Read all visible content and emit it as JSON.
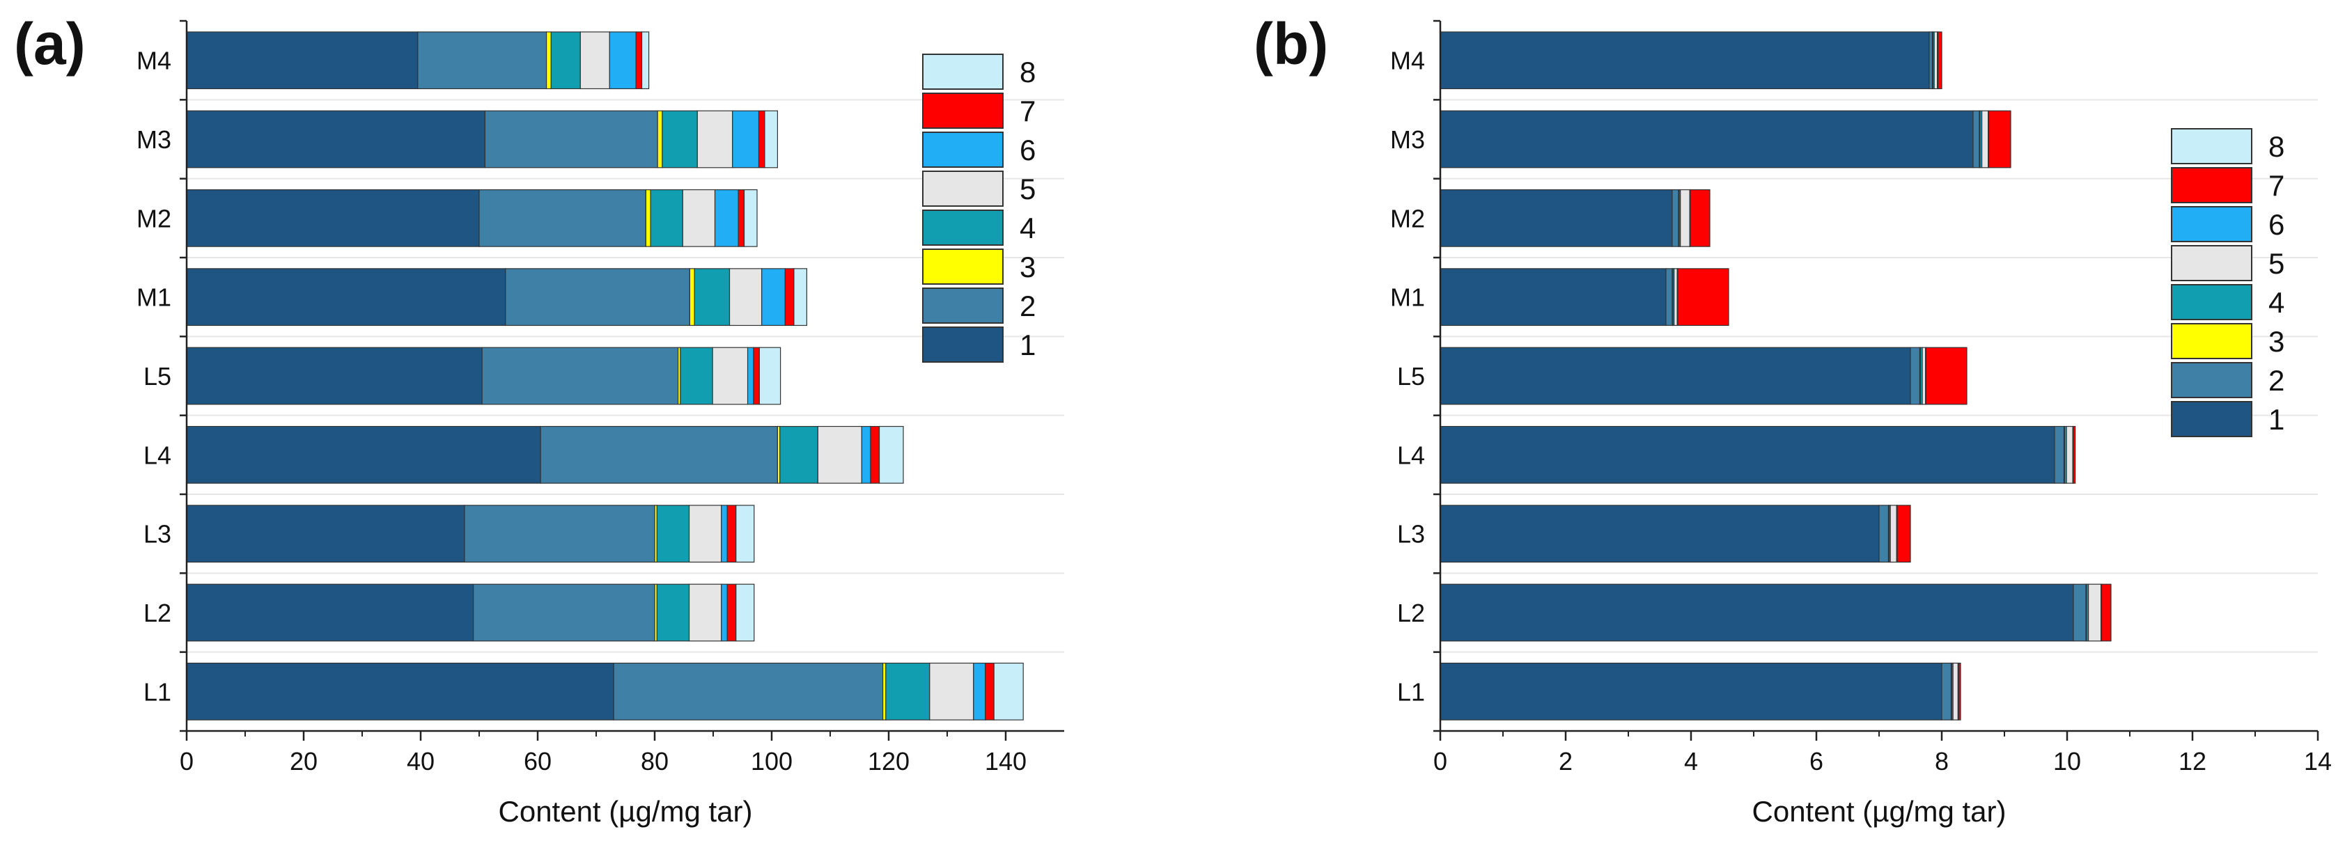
{
  "colors": {
    "1": "#1f5582",
    "2": "#3f81a6",
    "3": "#ffff00",
    "4": "#119eb0",
    "5": "#e6e6e6",
    "6": "#21aef5",
    "7": "#ff0000",
    "8": "#c8eefa",
    "edge": "#333333"
  },
  "chart_data": [
    {
      "panel_label": "(a)",
      "type": "bar",
      "orientation": "horizontal",
      "stacked": true,
      "xlabel": "Content (µg/mg tar)",
      "xlim": [
        0,
        150
      ],
      "xticks": [
        0,
        20,
        40,
        60,
        80,
        100,
        120,
        140
      ],
      "xtick_labels": [
        "0",
        "20",
        "40",
        "60",
        "80",
        "100",
        "120",
        "140"
      ],
      "categories": [
        "M4",
        "M3",
        "M2",
        "M1",
        "L5",
        "L4",
        "L3",
        "L2",
        "L1"
      ],
      "legend_title": "",
      "legend_order": [
        "8",
        "7",
        "6",
        "5",
        "4",
        "3",
        "2",
        "1"
      ],
      "legend_position": "right",
      "series": [
        {
          "name": "1",
          "values": [
            39.5,
            51,
            50,
            54.5,
            50.5,
            60.5,
            47.5,
            49,
            73
          ]
        },
        {
          "name": "2",
          "values": [
            22,
            29.5,
            28.5,
            31.5,
            33.5,
            40.5,
            32.5,
            31,
            46
          ]
        },
        {
          "name": "3",
          "values": [
            0.8,
            0.8,
            0.8,
            0.8,
            0.4,
            0.4,
            0.4,
            0.4,
            0.5
          ]
        },
        {
          "name": "4",
          "values": [
            5,
            6,
            5.5,
            6,
            5.5,
            6.5,
            5.5,
            5.5,
            7.5
          ]
        },
        {
          "name": "5",
          "values": [
            5,
            6,
            5.5,
            5.5,
            6,
            7.5,
            5.5,
            5.5,
            7.5
          ]
        },
        {
          "name": "6",
          "values": [
            4.5,
            4.5,
            4,
            4,
            1,
            1.5,
            1,
            1,
            2
          ]
        },
        {
          "name": "7",
          "values": [
            1,
            1,
            1,
            1.5,
            1,
            1.5,
            1.5,
            1.5,
            1.5
          ]
        },
        {
          "name": "8",
          "values": [
            1.2,
            2.2,
            2.2,
            2.2,
            3.6,
            4.1,
            3.1,
            3.1,
            5
          ]
        }
      ]
    },
    {
      "panel_label": "(b)",
      "type": "bar",
      "orientation": "horizontal",
      "stacked": true,
      "xlabel": "Content (µg/mg tar)",
      "xlim": [
        0,
        14
      ],
      "xticks": [
        0,
        2,
        4,
        6,
        8,
        10,
        12,
        14
      ],
      "xtick_labels": [
        "0",
        "2",
        "4",
        "6",
        "8",
        "10",
        "12",
        "14"
      ],
      "categories": [
        "M4",
        "M3",
        "M2",
        "M1",
        "L5",
        "L4",
        "L3",
        "L2",
        "L1"
      ],
      "legend_title": "",
      "legend_order": [
        "8",
        "7",
        "6",
        "5",
        "4",
        "3",
        "2",
        "1"
      ],
      "legend_position": "right",
      "series": [
        {
          "name": "1",
          "values": [
            7.8,
            8.5,
            3.7,
            3.6,
            7.5,
            9.8,
            7.0,
            10.1,
            8.0
          ]
        },
        {
          "name": "2",
          "values": [
            0.05,
            0.1,
            0.1,
            0.1,
            0.15,
            0.15,
            0.15,
            0.2,
            0.15
          ]
        },
        {
          "name": "3",
          "values": [
            0.01,
            0.01,
            0.01,
            0.01,
            0.01,
            0.01,
            0.01,
            0.01,
            0.01
          ]
        },
        {
          "name": "4",
          "values": [
            0.02,
            0.03,
            0.02,
            0.02,
            0.03,
            0.03,
            0.02,
            0.03,
            0.02
          ]
        },
        {
          "name": "5",
          "values": [
            0.05,
            0.1,
            0.15,
            0.05,
            0.05,
            0.1,
            0.1,
            0.2,
            0.08
          ]
        },
        {
          "name": "6",
          "values": [
            0.01,
            0.01,
            0.01,
            0.01,
            0.01,
            0.01,
            0.01,
            0.01,
            0.01
          ]
        },
        {
          "name": "7",
          "values": [
            0.06,
            0.35,
            0.31,
            0.81,
            0.65,
            0.03,
            0.21,
            0.15,
            0.03
          ]
        },
        {
          "name": "8",
          "values": [
            0,
            0,
            0,
            0,
            0,
            0,
            0,
            0,
            0
          ]
        }
      ]
    }
  ]
}
